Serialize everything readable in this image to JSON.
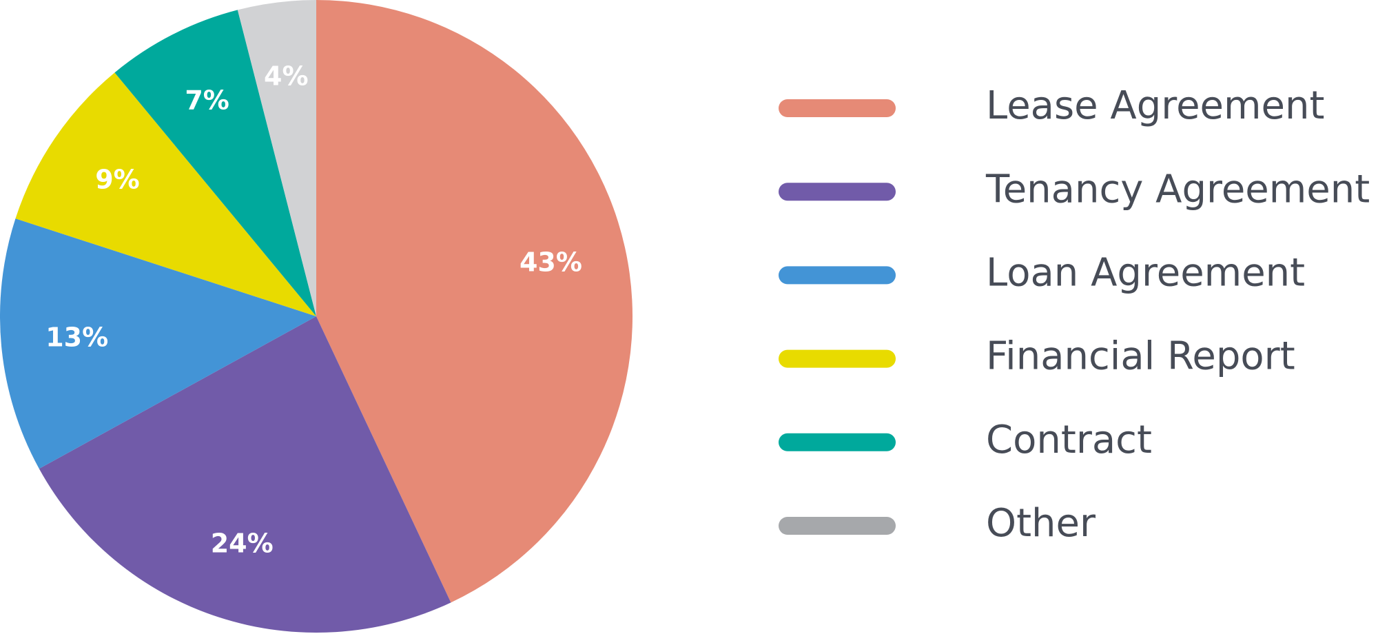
{
  "chart_data": {
    "type": "pie",
    "categories": [
      "Lease Agreement",
      "Tenancy Agreement",
      "Loan Agreement",
      "Financial Report",
      "Contract",
      "Other"
    ],
    "values": [
      43,
      24,
      13,
      9,
      7,
      4
    ],
    "value_labels": [
      "43%",
      "24%",
      "13%",
      "9%",
      "7%",
      "4%"
    ],
    "colors": [
      "#e68a76",
      "#715ba9",
      "#4394d6",
      "#e8db00",
      "#00a99c",
      "#d1d2d4"
    ],
    "legend_colors": [
      "#e68a76",
      "#715ba9",
      "#4394d6",
      "#e8db00",
      "#00a99c",
      "#a6a8ab"
    ],
    "start_angle": 0,
    "direction": "clockwise",
    "legend": "right"
  }
}
